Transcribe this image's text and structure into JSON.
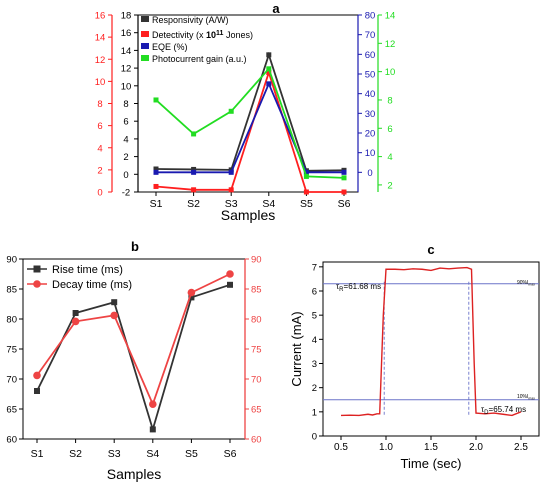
{
  "colors": {
    "black": "#333333",
    "red": "#ff1f1f",
    "blue": "#1a1ab0",
    "green": "#22dd22",
    "decay": "#ee4444",
    "guide": "#6b74c9",
    "signal": "#dd2222"
  },
  "chart_data": [
    {
      "panel": "a",
      "type": "line",
      "title": "a",
      "xlabel": "Samples",
      "categories": [
        "S1",
        "S2",
        "S3",
        "S4",
        "S5",
        "S6"
      ],
      "axes": {
        "left_black": {
          "min": -2,
          "max": 18,
          "ticks": [
            -2,
            0,
            2,
            4,
            6,
            8,
            10,
            12,
            14,
            16,
            18
          ]
        },
        "left_red": {
          "min": 0,
          "max": 16,
          "ticks": [
            0,
            2,
            4,
            6,
            8,
            10,
            12,
            14,
            16
          ]
        },
        "right_blue": {
          "min": -10,
          "max": 80,
          "ticks": [
            0,
            10,
            20,
            30,
            40,
            50,
            60,
            70,
            80
          ]
        },
        "right_green": {
          "min": 1.5,
          "max": 14,
          "ticks": [
            2,
            4,
            6,
            8,
            10,
            12,
            14
          ]
        }
      },
      "legend": {
        "position": "top-left",
        "prefix_detectivity": "Detectivity (x ",
        "base": "10",
        "exponent": "11",
        "suffix_detectivity": " Jones)"
      },
      "series": [
        {
          "name": "Responsivity (A/W)",
          "axis": "left_black",
          "color": "black",
          "values": [
            0.6,
            0.55,
            0.5,
            13.5,
            0.4,
            0.45
          ]
        },
        {
          "name": "Detectivity",
          "axis": "left_red",
          "color": "red",
          "values": [
            0.5,
            0.2,
            0.2,
            10.8,
            0.0,
            0.0
          ]
        },
        {
          "name": "EQE (%)",
          "axis": "right_blue",
          "color": "blue",
          "values": [
            0,
            0,
            0,
            45,
            0,
            0
          ]
        },
        {
          "name": "Photocurrent gain (a.u.)",
          "axis": "right_green",
          "color": "green",
          "values": [
            8.0,
            5.6,
            7.2,
            10.2,
            2.6,
            2.5
          ]
        }
      ]
    },
    {
      "panel": "b",
      "type": "line",
      "title": "b",
      "xlabel": "Samples",
      "categories": [
        "S1",
        "S2",
        "S3",
        "S4",
        "S5",
        "S6"
      ],
      "ylim_left": [
        60,
        90
      ],
      "ylim_right": [
        60,
        90
      ],
      "yticks": [
        60,
        65,
        70,
        75,
        80,
        85,
        90
      ],
      "legend_position": "top-left",
      "series": [
        {
          "name": "Rise time (ms)",
          "axis": "left",
          "color": "black",
          "values": [
            68,
            81,
            82.8,
            61.6,
            83.6,
            85.7
          ]
        },
        {
          "name": "Decay time (ms)",
          "axis": "right",
          "color": "decay",
          "values": [
            70.6,
            79.6,
            80.6,
            65.8,
            84.4,
            87.5
          ]
        }
      ]
    },
    {
      "panel": "c",
      "type": "line",
      "title": "c",
      "xlabel": "Time (sec)",
      "ylabel": "Current (mA)",
      "xlim": [
        0.3,
        2.7
      ],
      "ylim": [
        0,
        7.2
      ],
      "xticks": [
        0.5,
        1.0,
        1.5,
        2.0,
        2.5
      ],
      "xtick_labels": [
        "0.5",
        "1.0",
        "1.5",
        "2.0",
        "2.5"
      ],
      "yticks": [
        0,
        1,
        2,
        3,
        4,
        5,
        6,
        7
      ],
      "levels": {
        "high": 6.3,
        "low": 1.5
      },
      "level_labels": {
        "p90": "90%I",
        "p90_sub": "max",
        "p10": "10%I",
        "p10_sub": "max"
      },
      "markers_x": [
        0.98,
        1.92
      ],
      "annotations": {
        "rise": {
          "tau": "τ",
          "sub": "R",
          "value": "=61.68 ms"
        },
        "decay": {
          "tau": "τ",
          "sub": "D",
          "value": "=65.74 ms"
        }
      },
      "series": [
        {
          "name": "",
          "color": "signal",
          "x": [
            0.5,
            0.6,
            0.7,
            0.8,
            0.85,
            0.9,
            0.93,
            0.97,
            1.0,
            1.1,
            1.2,
            1.3,
            1.4,
            1.5,
            1.6,
            1.7,
            1.8,
            1.9,
            1.95,
            1.98,
            2.0,
            2.1,
            2.2,
            2.3,
            2.4,
            2.5
          ],
          "y": [
            0.85,
            0.86,
            0.85,
            0.9,
            0.87,
            0.92,
            0.92,
            5.0,
            6.9,
            6.9,
            6.88,
            6.92,
            6.9,
            6.85,
            6.95,
            6.92,
            6.95,
            6.97,
            6.9,
            3.0,
            0.95,
            0.92,
            0.95,
            0.9,
            0.85,
            1.0
          ]
        }
      ]
    }
  ]
}
